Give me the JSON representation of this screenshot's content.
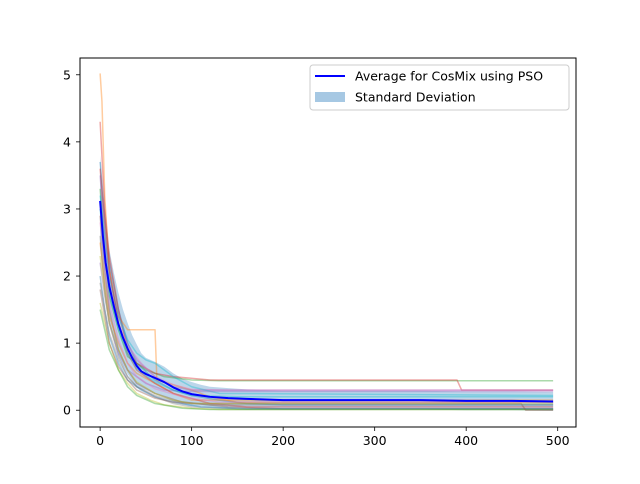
{
  "chart_data": {
    "type": "line",
    "title": "",
    "xlabel": "",
    "ylabel": "",
    "xlim": [
      -22,
      520
    ],
    "ylim": [
      -0.25,
      5.25
    ],
    "x_ticks": [
      0,
      100,
      200,
      300,
      400,
      500
    ],
    "y_ticks": [
      0,
      1,
      2,
      3,
      4,
      5
    ],
    "x_tick_labels": [
      "0",
      "100",
      "200",
      "300",
      "400",
      "500"
    ],
    "y_tick_labels": [
      "0",
      "1",
      "2",
      "3",
      "4",
      "5"
    ],
    "grid": false,
    "legend_position": "upper right",
    "legend": [
      {
        "label": "Average for CosMix using PSO",
        "kind": "line",
        "color": "#0000ff"
      },
      {
        "label": "Standard Deviation",
        "kind": "patch",
        "color": "#a6c8e3"
      }
    ],
    "series": [
      {
        "name": "Average for CosMix using PSO",
        "color": "#0000ff",
        "x": [
          0,
          3,
          6,
          10,
          15,
          20,
          25,
          30,
          35,
          40,
          45,
          50,
          60,
          70,
          80,
          90,
          100,
          110,
          120,
          140,
          160,
          180,
          200,
          250,
          300,
          350,
          400,
          450,
          495
        ],
        "y": [
          3.12,
          2.6,
          2.2,
          1.85,
          1.55,
          1.28,
          1.08,
          0.92,
          0.78,
          0.66,
          0.58,
          0.54,
          0.48,
          0.42,
          0.34,
          0.28,
          0.24,
          0.22,
          0.2,
          0.18,
          0.17,
          0.16,
          0.15,
          0.15,
          0.15,
          0.15,
          0.14,
          0.14,
          0.13
        ]
      }
    ],
    "std_band": {
      "name": "Standard Deviation",
      "color": "#a6c8e3",
      "x": [
        0,
        3,
        6,
        10,
        15,
        20,
        25,
        30,
        35,
        40,
        45,
        50,
        60,
        70,
        80,
        90,
        100,
        110,
        120,
        140,
        160,
        180,
        200,
        250,
        300,
        350,
        400,
        450,
        495
      ],
      "upper": [
        3.8,
        3.2,
        2.8,
        2.4,
        2.05,
        1.75,
        1.5,
        1.3,
        1.12,
        0.98,
        0.85,
        0.78,
        0.72,
        0.65,
        0.55,
        0.47,
        0.42,
        0.38,
        0.35,
        0.33,
        0.31,
        0.3,
        0.29,
        0.29,
        0.29,
        0.29,
        0.28,
        0.28,
        0.27
      ],
      "lower": [
        2.44,
        2.0,
        1.6,
        1.3,
        1.05,
        0.81,
        0.66,
        0.54,
        0.44,
        0.34,
        0.31,
        0.3,
        0.24,
        0.19,
        0.13,
        0.09,
        0.06,
        0.06,
        0.05,
        0.03,
        0.03,
        0.02,
        0.01,
        0.01,
        0.01,
        0.01,
        0.0,
        0.0,
        -0.01
      ]
    },
    "individual_runs": [
      {
        "color": "#1f77b4",
        "x": [
          0,
          5,
          10,
          20,
          30,
          40,
          60,
          80,
          100,
          130,
          160,
          200,
          495
        ],
        "y": [
          3.7,
          2.9,
          2.2,
          1.5,
          1.0,
          0.7,
          0.45,
          0.3,
          0.22,
          0.15,
          0.1,
          0.08,
          0.08
        ]
      },
      {
        "color": "#ff7f0e",
        "x": [
          0,
          2,
          5,
          10,
          20,
          30,
          40,
          60,
          62,
          100,
          120,
          150,
          495
        ],
        "y": [
          5.02,
          4.6,
          3.2,
          2.1,
          1.4,
          1.2,
          1.2,
          1.2,
          0.45,
          0.3,
          0.2,
          0.12,
          0.12
        ]
      },
      {
        "color": "#2ca02c",
        "x": [
          0,
          5,
          10,
          20,
          30,
          50,
          70,
          100,
          130,
          495
        ],
        "y": [
          3.3,
          2.4,
          1.7,
          1.2,
          0.8,
          0.6,
          0.5,
          0.45,
          0.44,
          0.44
        ]
      },
      {
        "color": "#d62728",
        "x": [
          0,
          5,
          10,
          20,
          30,
          40,
          60,
          80,
          120,
          390,
          395,
          495
        ],
        "y": [
          4.3,
          3.0,
          2.3,
          1.5,
          0.9,
          0.7,
          0.55,
          0.5,
          0.45,
          0.45,
          0.3,
          0.3
        ]
      },
      {
        "color": "#9467bd",
        "x": [
          0,
          5,
          10,
          20,
          30,
          40,
          60,
          80,
          100,
          150,
          495
        ],
        "y": [
          3.5,
          2.6,
          2.0,
          1.4,
          1.0,
          0.75,
          0.5,
          0.35,
          0.3,
          0.3,
          0.3
        ]
      },
      {
        "color": "#8c564b",
        "x": [
          0,
          5,
          10,
          20,
          30,
          40,
          60,
          90,
          140,
          200,
          495
        ],
        "y": [
          2.9,
          2.1,
          1.5,
          0.9,
          0.6,
          0.4,
          0.25,
          0.12,
          0.05,
          0.02,
          0.02
        ]
      },
      {
        "color": "#e377c2",
        "x": [
          0,
          5,
          10,
          20,
          30,
          45,
          60,
          80,
          100,
          140,
          495
        ],
        "y": [
          3.1,
          2.5,
          1.9,
          1.3,
          0.95,
          0.7,
          0.5,
          0.38,
          0.31,
          0.3,
          0.3
        ]
      },
      {
        "color": "#7f7f7f",
        "x": [
          0,
          5,
          10,
          20,
          30,
          40,
          60,
          80,
          100,
          150,
          495
        ],
        "y": [
          2.6,
          1.8,
          1.3,
          0.8,
          0.5,
          0.35,
          0.2,
          0.1,
          0.05,
          0.02,
          0.02
        ]
      },
      {
        "color": "#bcbd22",
        "x": [
          0,
          5,
          10,
          20,
          30,
          40,
          55,
          70,
          100,
          130,
          495
        ],
        "y": [
          1.6,
          1.3,
          1.0,
          0.6,
          0.4,
          0.25,
          0.15,
          0.08,
          0.03,
          0.01,
          0.01
        ]
      },
      {
        "color": "#17becf",
        "x": [
          0,
          5,
          10,
          20,
          30,
          40,
          50,
          60,
          80,
          100,
          130,
          495
        ],
        "y": [
          3.2,
          2.6,
          2.0,
          1.4,
          1.05,
          0.85,
          0.75,
          0.7,
          0.5,
          0.35,
          0.25,
          0.22
        ]
      },
      {
        "color": "#1f77b4",
        "x": [
          0,
          5,
          10,
          20,
          30,
          45,
          60,
          80,
          110,
          160,
          495
        ],
        "y": [
          2.0,
          1.5,
          1.1,
          0.7,
          0.45,
          0.3,
          0.2,
          0.12,
          0.05,
          0.02,
          0.02
        ]
      },
      {
        "color": "#ff7f0e",
        "x": [
          0,
          5,
          10,
          20,
          30,
          40,
          60,
          80,
          100,
          495
        ],
        "y": [
          2.5,
          1.9,
          1.4,
          1.0,
          0.7,
          0.55,
          0.4,
          0.25,
          0.15,
          0.15
        ]
      },
      {
        "color": "#2ca02c",
        "x": [
          0,
          5,
          10,
          20,
          30,
          40,
          60,
          90,
          120,
          495
        ],
        "y": [
          1.5,
          1.2,
          0.9,
          0.6,
          0.35,
          0.22,
          0.1,
          0.03,
          0.01,
          0.01
        ]
      },
      {
        "color": "#d62728",
        "x": [
          0,
          5,
          10,
          20,
          30,
          40,
          60,
          80,
          120,
          160,
          495
        ],
        "y": [
          3.6,
          2.8,
          2.1,
          1.3,
          0.85,
          0.6,
          0.4,
          0.25,
          0.1,
          0.05,
          0.05
        ]
      },
      {
        "color": "#9467bd",
        "x": [
          0,
          5,
          10,
          20,
          30,
          50,
          70,
          100,
          140,
          495
        ],
        "y": [
          2.2,
          1.7,
          1.3,
          0.85,
          0.6,
          0.4,
          0.3,
          0.28,
          0.28,
          0.28
        ]
      },
      {
        "color": "#8c564b",
        "x": [
          0,
          5,
          10,
          20,
          30,
          40,
          60,
          80,
          100,
          460,
          465,
          495
        ],
        "y": [
          1.8,
          1.4,
          1.0,
          0.65,
          0.45,
          0.3,
          0.18,
          0.12,
          0.1,
          0.1,
          0.0,
          0.0
        ]
      },
      {
        "color": "#e377c2",
        "x": [
          0,
          5,
          10,
          20,
          30,
          40,
          60,
          90,
          130,
          495
        ],
        "y": [
          2.8,
          2.2,
          1.6,
          1.05,
          0.7,
          0.5,
          0.32,
          0.2,
          0.12,
          0.12
        ]
      },
      {
        "color": "#7f7f7f",
        "x": [
          0,
          5,
          10,
          20,
          30,
          40,
          60,
          80,
          120,
          495
        ],
        "y": [
          1.9,
          1.5,
          1.15,
          0.75,
          0.5,
          0.35,
          0.22,
          0.14,
          0.08,
          0.08
        ]
      },
      {
        "color": "#bcbd22",
        "x": [
          0,
          5,
          10,
          20,
          30,
          40,
          60,
          80,
          100,
          495
        ],
        "y": [
          2.3,
          1.75,
          1.3,
          0.9,
          0.6,
          0.42,
          0.25,
          0.15,
          0.1,
          0.1
        ]
      },
      {
        "color": "#17becf",
        "x": [
          0,
          5,
          10,
          20,
          30,
          40,
          60,
          80,
          100,
          150,
          495
        ],
        "y": [
          3.0,
          2.3,
          1.75,
          1.2,
          0.85,
          0.62,
          0.42,
          0.3,
          0.22,
          0.2,
          0.2
        ]
      }
    ]
  }
}
